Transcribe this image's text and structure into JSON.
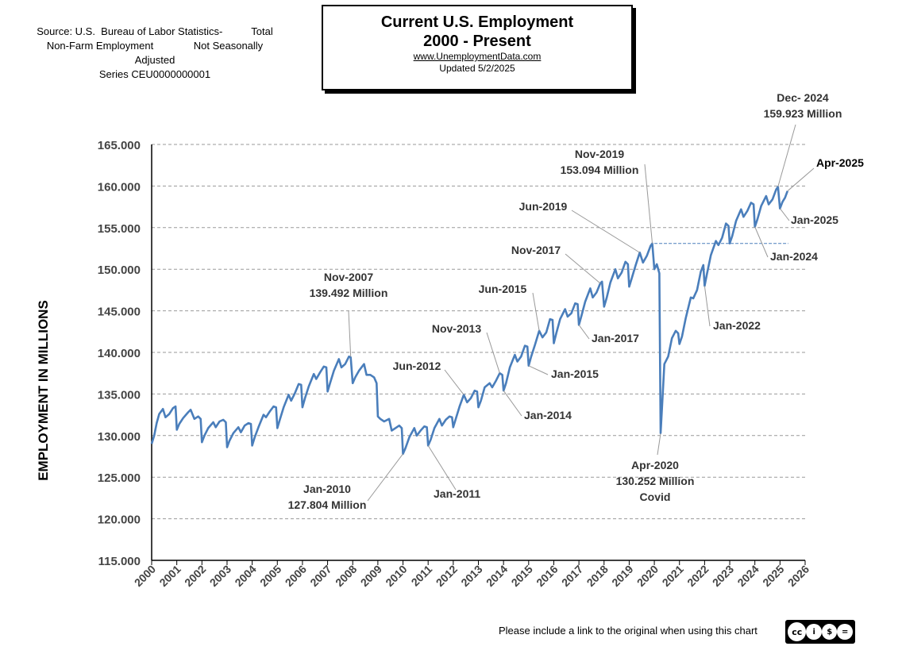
{
  "source_note": {
    "line1": "Source: U.S.  Bureau of Labor Statistics-          Total",
    "line2": "Non-Farm Employment              Not Seasonally",
    "line3": "Adjusted",
    "line4": "Series CEU0000000001"
  },
  "title_box": {
    "title_line1": "Current U.S. Employment",
    "title_line2": "2000 - Present",
    "website": "www.UnemploymentData.com",
    "updated": "Updated   5/2/2025"
  },
  "footer": {
    "note": "Please include a link to the original when using this chart"
  },
  "license": {
    "icons": [
      "cc-icon",
      "by-icon",
      "nc-icon",
      "nd-icon"
    ],
    "glyphs": [
      "cc",
      "i",
      "$",
      "="
    ],
    "labels": [
      "BY",
      "NC",
      "ND"
    ]
  },
  "colors": {
    "line": "#4a7ebb",
    "grid": "#9a9a9a",
    "reference_line": "#4a7ebb"
  },
  "chart_data": {
    "type": "line",
    "ylabel": "EMPLOYMENT IN MILLIONS",
    "xlabel": "",
    "ylim": [
      115,
      165
    ],
    "xlim": [
      2000,
      2026
    ],
    "y_ticks": [
      "115.000",
      "120.000",
      "125.000",
      "130.000",
      "135.000",
      "140.000",
      "145.000",
      "150.000",
      "155.000",
      "160.000",
      "165.000"
    ],
    "x_ticks": [
      "2000",
      "2001",
      "2002",
      "2003",
      "2004",
      "2005",
      "2006",
      "2007",
      "2008",
      "2009",
      "2010",
      "2011",
      "2012",
      "2013",
      "2014",
      "2015",
      "2016",
      "2017",
      "2018",
      "2019",
      "2020",
      "2021",
      "2022",
      "2023",
      "2024",
      "2025",
      "2026"
    ],
    "grid": "horizontal dashed",
    "series": [
      {
        "x": [
          2000.0,
          2000.1,
          2000.2,
          2000.3,
          2000.45,
          2000.55,
          2000.7,
          2000.85,
          2000.95,
          2001.0,
          2001.1,
          2001.25,
          2001.45,
          2001.55,
          2001.7,
          2001.85,
          2001.95,
          2002.0,
          2002.1,
          2002.25,
          2002.45,
          2002.55,
          2002.7,
          2002.85,
          2002.95,
          2003.0,
          2003.1,
          2003.25,
          2003.45,
          2003.55,
          2003.7,
          2003.85,
          2003.95,
          2004.0,
          2004.1,
          2004.25,
          2004.45,
          2004.55,
          2004.7,
          2004.85,
          2004.95,
          2005.0,
          2005.1,
          2005.25,
          2005.45,
          2005.55,
          2005.7,
          2005.85,
          2005.95,
          2006.0,
          2006.1,
          2006.25,
          2006.45,
          2006.55,
          2006.7,
          2006.85,
          2006.95,
          2007.0,
          2007.1,
          2007.25,
          2007.45,
          2007.55,
          2007.7,
          2007.85,
          2007.92,
          2008.0,
          2008.1,
          2008.25,
          2008.45,
          2008.55,
          2008.7,
          2008.85,
          2008.95,
          2009.0,
          2009.1,
          2009.25,
          2009.45,
          2009.55,
          2009.7,
          2009.85,
          2009.95,
          2010.0,
          2010.1,
          2010.25,
          2010.45,
          2010.55,
          2010.7,
          2010.85,
          2010.95,
          2011.0,
          2011.1,
          2011.25,
          2011.45,
          2011.55,
          2011.7,
          2011.85,
          2011.95,
          2012.0,
          2012.1,
          2012.25,
          2012.42,
          2012.55,
          2012.7,
          2012.85,
          2012.95,
          2013.0,
          2013.1,
          2013.25,
          2013.45,
          2013.55,
          2013.7,
          2013.85,
          2013.95,
          2014.0,
          2014.1,
          2014.25,
          2014.45,
          2014.55,
          2014.7,
          2014.85,
          2014.95,
          2015.0,
          2015.1,
          2015.25,
          2015.42,
          2015.55,
          2015.7,
          2015.85,
          2015.95,
          2016.0,
          2016.1,
          2016.25,
          2016.45,
          2016.55,
          2016.7,
          2016.85,
          2016.95,
          2017.0,
          2017.1,
          2017.25,
          2017.45,
          2017.55,
          2017.7,
          2017.85,
          2017.92,
          2018.0,
          2018.1,
          2018.25,
          2018.45,
          2018.55,
          2018.7,
          2018.85,
          2018.95,
          2019.0,
          2019.1,
          2019.25,
          2019.42,
          2019.55,
          2019.7,
          2019.85,
          2019.92,
          2020.0,
          2020.1,
          2020.2,
          2020.25,
          2020.4,
          2020.55,
          2020.7,
          2020.85,
          2020.95,
          2021.0,
          2021.1,
          2021.25,
          2021.45,
          2021.55,
          2021.7,
          2021.85,
          2021.95,
          2022.0,
          2022.1,
          2022.25,
          2022.45,
          2022.55,
          2022.7,
          2022.85,
          2022.95,
          2023.0,
          2023.1,
          2023.25,
          2023.45,
          2023.55,
          2023.7,
          2023.85,
          2023.95,
          2024.0,
          2024.1,
          2024.25,
          2024.45,
          2024.55,
          2024.7,
          2024.85,
          2024.92,
          2025.0,
          2025.1,
          2025.2,
          2025.3
        ],
        "y": [
          129.0,
          130.0,
          131.5,
          132.6,
          133.2,
          132.2,
          132.6,
          133.3,
          133.5,
          130.7,
          131.4,
          132.1,
          132.8,
          133.1,
          132.0,
          132.3,
          132.0,
          129.2,
          130.0,
          130.9,
          131.6,
          131.0,
          131.7,
          131.9,
          131.6,
          128.6,
          129.4,
          130.3,
          131.0,
          130.4,
          131.2,
          131.5,
          131.4,
          128.8,
          129.8,
          131.0,
          132.5,
          132.2,
          132.9,
          133.5,
          133.4,
          130.9,
          131.9,
          133.4,
          134.9,
          134.2,
          135.1,
          136.2,
          136.1,
          133.4,
          134.5,
          135.9,
          137.4,
          136.8,
          137.6,
          138.3,
          138.2,
          135.3,
          136.3,
          137.8,
          139.2,
          138.2,
          138.6,
          139.5,
          139.4,
          136.3,
          137.0,
          137.8,
          138.6,
          137.3,
          137.3,
          137.0,
          136.3,
          132.3,
          132.0,
          131.7,
          132.0,
          130.6,
          130.9,
          131.2,
          130.9,
          127.8,
          128.5,
          129.8,
          130.9,
          130.0,
          130.6,
          131.1,
          131.0,
          128.8,
          129.5,
          130.9,
          132.0,
          131.2,
          131.9,
          132.3,
          132.2,
          131.0,
          132.0,
          133.5,
          134.9,
          134.0,
          134.5,
          135.4,
          135.3,
          133.4,
          134.2,
          135.8,
          136.3,
          135.8,
          136.6,
          137.5,
          137.3,
          135.4,
          136.3,
          138.2,
          139.7,
          138.9,
          139.5,
          140.8,
          140.7,
          138.4,
          139.5,
          140.9,
          142.6,
          141.8,
          142.4,
          144.0,
          143.9,
          141.1,
          142.3,
          144.0,
          145.2,
          144.3,
          144.7,
          145.9,
          145.8,
          143.3,
          144.4,
          146.1,
          147.7,
          146.6,
          147.2,
          148.3,
          148.5,
          145.5,
          146.5,
          148.4,
          150.0,
          148.9,
          149.6,
          150.9,
          150.6,
          147.9,
          148.9,
          150.4,
          152.0,
          150.8,
          151.6,
          152.8,
          153.1,
          150.0,
          150.6,
          149.5,
          130.3,
          138.6,
          139.5,
          141.7,
          142.6,
          142.3,
          141.0,
          141.9,
          144.1,
          146.6,
          146.5,
          147.5,
          149.7,
          150.5,
          148.0,
          149.5,
          151.7,
          153.4,
          152.9,
          153.8,
          155.5,
          155.2,
          153.1,
          154.0,
          155.8,
          157.2,
          156.3,
          157.0,
          158.0,
          157.8,
          155.1,
          156.0,
          157.6,
          158.8,
          157.8,
          158.4,
          159.6,
          159.9,
          157.3,
          158.1,
          158.6,
          159.4
        ]
      }
    ],
    "reference_line": {
      "y": 153.094,
      "x_start": 2020.0,
      "x_end": 2025.33
    },
    "annotations": [
      {
        "lines": [
          "Nov-2007",
          "139.492 Million"
        ],
        "x": 2007.92,
        "y": 139.49
      },
      {
        "lines": [
          "Jan-2010",
          "127.804 Million"
        ],
        "x": 2010.0,
        "y": 127.8
      },
      {
        "lines": [
          "Jan-2011"
        ],
        "x": 2011.0,
        "y": 128.8
      },
      {
        "lines": [
          "Jun-2012"
        ],
        "x": 2012.42,
        "y": 134.9
      },
      {
        "lines": [
          "Nov-2013"
        ],
        "x": 2013.85,
        "y": 137.5
      },
      {
        "lines": [
          "Jan-2014"
        ],
        "x": 2014.0,
        "y": 135.4
      },
      {
        "lines": [
          "Jun-2015"
        ],
        "x": 2015.42,
        "y": 142.6
      },
      {
        "lines": [
          "Jan-2015"
        ],
        "x": 2015.0,
        "y": 138.4
      },
      {
        "lines": [
          "Nov-2017"
        ],
        "x": 2017.85,
        "y": 148.3
      },
      {
        "lines": [
          "Jan-2017"
        ],
        "x": 2017.0,
        "y": 143.3
      },
      {
        "lines": [
          "Jun-2019"
        ],
        "x": 2019.42,
        "y": 152.0
      },
      {
        "lines": [
          "Nov-2019",
          "153.094 Million"
        ],
        "x": 2019.92,
        "y": 153.09
      },
      {
        "lines": [
          "Apr-2020",
          "130.252 Million",
          "Covid"
        ],
        "x": 2020.25,
        "y": 130.25
      },
      {
        "lines": [
          "Jan-2022"
        ],
        "x": 2022.0,
        "y": 148.0
      },
      {
        "lines": [
          "Jan-2024"
        ],
        "x": 2024.0,
        "y": 155.1
      },
      {
        "lines": [
          "Dec- 2024",
          "159.923 Million"
        ],
        "x": 2024.92,
        "y": 159.92
      },
      {
        "lines": [
          "Jan-2025"
        ],
        "x": 2025.0,
        "y": 157.3
      },
      {
        "lines": [
          "Apr-2025"
        ],
        "x": 2025.3,
        "y": 159.4
      }
    ]
  }
}
